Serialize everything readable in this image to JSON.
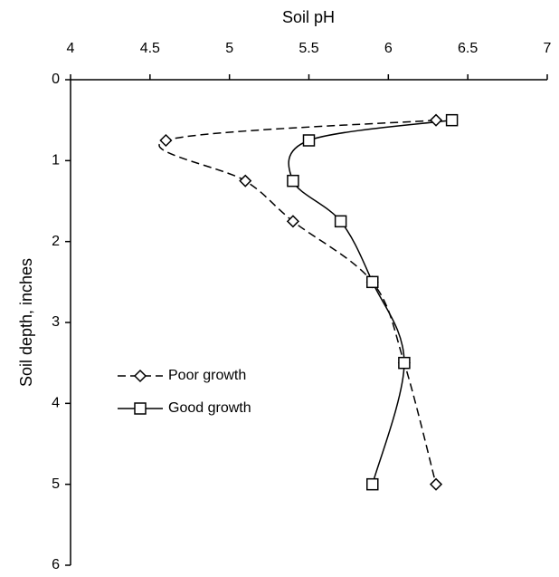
{
  "chart_data": {
    "type": "line",
    "xlabel": "Soil pH",
    "ylabel": "Soil depth, inches",
    "xlim": [
      4,
      7
    ],
    "xticks": [
      4,
      4.5,
      5,
      5.5,
      6,
      6.5,
      7
    ],
    "ylim": [
      0,
      6
    ],
    "yticks": [
      0,
      1,
      2,
      3,
      4,
      5,
      6
    ],
    "y_inverted": true,
    "x_axis_top": true,
    "series": [
      {
        "name": "Poor growth",
        "color": "#000000",
        "dashed": true,
        "marker": "diamond",
        "x": [
          6.3,
          4.6,
          5.1,
          5.4,
          5.9,
          6.1,
          6.3
        ],
        "values": [
          0.5,
          0.75,
          1.25,
          1.75,
          2.5,
          3.5,
          5
        ]
      },
      {
        "name": "Good growth",
        "color": "#000000",
        "dashed": false,
        "marker": "square",
        "x": [
          6.4,
          5.5,
          5.4,
          5.7,
          5.9,
          6.1,
          5.9
        ],
        "values": [
          0.5,
          0.75,
          1.25,
          1.75,
          2.5,
          3.5,
          5
        ]
      }
    ]
  }
}
